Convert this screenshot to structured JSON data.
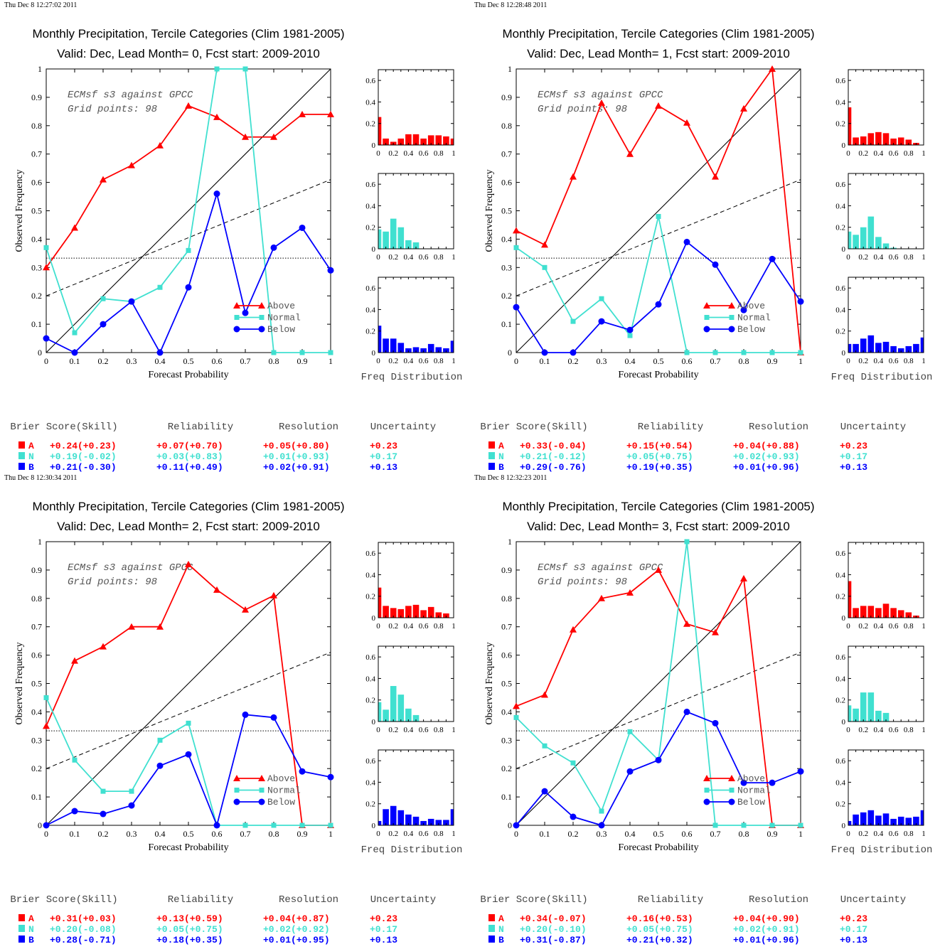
{
  "colors": {
    "above": "#ff0000",
    "normal": "#40e0d0",
    "below": "#0000ff",
    "diagonal": "#000000"
  },
  "chart_data": [
    {
      "type": "line",
      "timestamp": "Thu Dec  8 12:27:02 2011",
      "title": "Monthly Precipitation, Tercile Categories (Clim 1981-2005)",
      "subtitle": "Valid: Dec, Lead Month= 0, Fcst start: 2009-2010",
      "xlabel": "Forecast Probability",
      "ylabel": "Observed Frequency",
      "xlim": [
        0,
        1
      ],
      "ylim": [
        0,
        1
      ],
      "x": [
        0,
        0.1,
        0.2,
        0.3,
        0.4,
        0.5,
        0.6,
        0.7,
        0.8,
        0.9,
        1
      ],
      "annotation": [
        "ECMsf s3 against GPCC",
        "Grid points:   98"
      ],
      "series": [
        {
          "name": "Above",
          "values": [
            0.3,
            0.44,
            0.61,
            0.66,
            0.73,
            0.87,
            0.83,
            0.76,
            0.76,
            0.84,
            0.84
          ]
        },
        {
          "name": "Normal",
          "values": [
            0.37,
            0.07,
            0.19,
            0.18,
            0.23,
            0.36,
            1.0,
            1.0,
            0,
            0,
            0
          ]
        },
        {
          "name": "Below",
          "values": [
            0.05,
            0,
            0.1,
            0.18,
            0,
            0.23,
            0.56,
            0.14,
            0.37,
            0.44,
            0.29
          ]
        }
      ],
      "climatology": 0.333,
      "skill_line": [
        0.2,
        0.61
      ],
      "hist_xlabel": "Freq Distribution",
      "hist_ylim": [
        0,
        0.7
      ],
      "hist": {
        "above": [
          0.26,
          0.06,
          0.03,
          0.06,
          0.1,
          0.1,
          0.06,
          0.09,
          0.09,
          0.08,
          0.06
        ],
        "normal": [
          0.18,
          0.16,
          0.28,
          0.2,
          0.08,
          0.06,
          0,
          0,
          0,
          0,
          0
        ],
        "below": [
          0.25,
          0.13,
          0.13,
          0.09,
          0.04,
          0.05,
          0.04,
          0.08,
          0.05,
          0.04,
          0.11
        ]
      },
      "scores": {
        "headers": [
          "Brier Score(Skill)",
          "Reliability",
          "Resolution",
          "Uncertainty"
        ],
        "rows": [
          {
            "cat": "A",
            "brier": "+0.24(+0.23)",
            "rel": "+0.07(+0.70)",
            "res": "+0.05(+0.80)",
            "unc": "+0.23"
          },
          {
            "cat": "N",
            "brier": "+0.19(-0.02)",
            "rel": "+0.03(+0.83)",
            "res": "+0.01(+0.93)",
            "unc": "+0.17"
          },
          {
            "cat": "B",
            "brier": "+0.21(-0.30)",
            "rel": "+0.11(+0.49)",
            "res": "+0.02(+0.91)",
            "unc": "+0.13"
          }
        ]
      }
    },
    {
      "type": "line",
      "timestamp": "Thu Dec  8 12:28:48 2011",
      "title": "Monthly Precipitation, Tercile Categories (Clim 1981-2005)",
      "subtitle": "Valid: Dec, Lead Month= 1, Fcst start: 2009-2010",
      "xlabel": "Forecast Probability",
      "ylabel": "Observed Frequency",
      "xlim": [
        0,
        1
      ],
      "ylim": [
        0,
        1
      ],
      "x": [
        0,
        0.1,
        0.2,
        0.3,
        0.4,
        0.5,
        0.6,
        0.7,
        0.8,
        0.9,
        1
      ],
      "annotation": [
        "ECMsf s3 against GPCC",
        "Grid points:   98"
      ],
      "series": [
        {
          "name": "Above",
          "values": [
            0.43,
            0.38,
            0.62,
            0.88,
            0.7,
            0.87,
            0.81,
            0.62,
            0.86,
            1.0,
            0
          ]
        },
        {
          "name": "Normal",
          "values": [
            0.37,
            0.3,
            0.11,
            0.19,
            0.06,
            0.48,
            0,
            0,
            0,
            0,
            0
          ]
        },
        {
          "name": "Below",
          "values": [
            0.16,
            0,
            0,
            0.11,
            0.08,
            0.17,
            0.39,
            0.31,
            0.15,
            0.33,
            0.18
          ]
        }
      ],
      "climatology": 0.333,
      "skill_line": [
        0.2,
        0.61
      ],
      "hist_xlabel": "Freq Distribution",
      "hist_ylim": [
        0,
        0.7
      ],
      "hist": {
        "above": [
          0.35,
          0.07,
          0.08,
          0.11,
          0.12,
          0.11,
          0.06,
          0.07,
          0.05,
          0.02,
          0
        ],
        "normal": [
          0.16,
          0.13,
          0.2,
          0.3,
          0.11,
          0.05,
          0.01,
          0,
          0,
          0,
          0
        ],
        "below": [
          0.08,
          0.08,
          0.13,
          0.16,
          0.09,
          0.1,
          0.06,
          0.04,
          0.06,
          0.08,
          0.14
        ]
      },
      "scores": {
        "headers": [
          "Brier Score(Skill)",
          "Reliability",
          "Resolution",
          "Uncertainty"
        ],
        "rows": [
          {
            "cat": "A",
            "brier": "+0.33(-0.04)",
            "rel": "+0.15(+0.54)",
            "res": "+0.04(+0.88)",
            "unc": "+0.23"
          },
          {
            "cat": "N",
            "brier": "+0.21(-0.12)",
            "rel": "+0.05(+0.75)",
            "res": "+0.02(+0.93)",
            "unc": "+0.17"
          },
          {
            "cat": "B",
            "brier": "+0.29(-0.76)",
            "rel": "+0.19(+0.35)",
            "res": "+0.01(+0.96)",
            "unc": "+0.13"
          }
        ]
      }
    },
    {
      "type": "line",
      "timestamp": "Thu Dec  8 12:30:34 2011",
      "title": "Monthly Precipitation, Tercile Categories (Clim 1981-2005)",
      "subtitle": "Valid: Dec, Lead Month= 2, Fcst start: 2009-2010",
      "xlabel": "Forecast Probability",
      "ylabel": "Observed Frequency",
      "xlim": [
        0,
        1
      ],
      "ylim": [
        0,
        1
      ],
      "x": [
        0,
        0.1,
        0.2,
        0.3,
        0.4,
        0.5,
        0.6,
        0.7,
        0.8,
        0.9,
        1
      ],
      "annotation": [
        "ECMsf s3 against GPCC",
        "Grid points:   98"
      ],
      "series": [
        {
          "name": "Above",
          "values": [
            0.35,
            0.58,
            0.63,
            0.7,
            0.7,
            0.92,
            0.83,
            0.76,
            0.81,
            0,
            0
          ]
        },
        {
          "name": "Normal",
          "values": [
            0.45,
            0.23,
            0.12,
            0.12,
            0.3,
            0.36,
            0,
            0,
            0,
            0,
            0
          ]
        },
        {
          "name": "Below",
          "values": [
            0,
            0.05,
            0.04,
            0.07,
            0.21,
            0.25,
            0,
            0.39,
            0.38,
            0.19,
            0.17
          ]
        }
      ],
      "climatology": 0.333,
      "skill_line": [
        0.2,
        0.61
      ],
      "hist_xlabel": "Freq Distribution",
      "hist_ylim": [
        0,
        0.7
      ],
      "hist": {
        "above": [
          0.28,
          0.11,
          0.09,
          0.08,
          0.11,
          0.12,
          0.07,
          0.1,
          0.05,
          0.04,
          0
        ],
        "normal": [
          0.18,
          0.11,
          0.33,
          0.25,
          0.12,
          0.06,
          0,
          0,
          0,
          0,
          0
        ],
        "below": [
          0.04,
          0.15,
          0.18,
          0.14,
          0.1,
          0.08,
          0.04,
          0.06,
          0.05,
          0.05,
          0.15
        ]
      },
      "scores": {
        "headers": [
          "Brier Score(Skill)",
          "Reliability",
          "Resolution",
          "Uncertainty"
        ],
        "rows": [
          {
            "cat": "A",
            "brier": "+0.31(+0.03)",
            "rel": "+0.13(+0.59)",
            "res": "+0.04(+0.87)",
            "unc": "+0.23"
          },
          {
            "cat": "N",
            "brier": "+0.20(-0.08)",
            "rel": "+0.05(+0.75)",
            "res": "+0.02(+0.92)",
            "unc": "+0.17"
          },
          {
            "cat": "B",
            "brier": "+0.28(-0.71)",
            "rel": "+0.18(+0.35)",
            "res": "+0.01(+0.95)",
            "unc": "+0.13"
          }
        ]
      }
    },
    {
      "type": "line",
      "timestamp": "Thu Dec  8 12:32:23 2011",
      "title": "Monthly Precipitation, Tercile Categories (Clim 1981-2005)",
      "subtitle": "Valid: Dec, Lead Month= 3, Fcst start: 2009-2010",
      "xlabel": "Forecast Probability",
      "ylabel": "Observed Frequency",
      "xlim": [
        0,
        1
      ],
      "ylim": [
        0,
        1
      ],
      "x": [
        0,
        0.1,
        0.2,
        0.3,
        0.4,
        0.5,
        0.6,
        0.7,
        0.8,
        0.9,
        1
      ],
      "annotation": [
        "ECMsf s3 against GPCC",
        "Grid points:   98"
      ],
      "series": [
        {
          "name": "Above",
          "values": [
            0.42,
            0.46,
            0.69,
            0.8,
            0.82,
            0.9,
            0.71,
            0.68,
            0.87,
            0,
            0
          ]
        },
        {
          "name": "Normal",
          "values": [
            0.38,
            0.28,
            0.22,
            0.05,
            0.33,
            0.23,
            1.0,
            0,
            0,
            0,
            0
          ]
        },
        {
          "name": "Below",
          "values": [
            0,
            0.12,
            0.03,
            0,
            0.19,
            0.23,
            0.4,
            0.36,
            0.15,
            0.15,
            0.19
          ]
        }
      ],
      "climatology": 0.333,
      "skill_line": [
        0.2,
        0.61
      ],
      "hist_xlabel": "Freq Distribution",
      "hist_ylim": [
        0,
        0.7
      ],
      "hist": {
        "above": [
          0.34,
          0.09,
          0.11,
          0.11,
          0.09,
          0.13,
          0.09,
          0.07,
          0.05,
          0.02,
          0
        ],
        "normal": [
          0.15,
          0.12,
          0.27,
          0.27,
          0.1,
          0.08,
          0,
          0,
          0,
          0,
          0
        ],
        "below": [
          0.04,
          0.1,
          0.12,
          0.14,
          0.09,
          0.11,
          0.06,
          0.08,
          0.07,
          0.08,
          0.14
        ]
      },
      "scores": {
        "headers": [
          "Brier Score(Skill)",
          "Reliability",
          "Resolution",
          "Uncertainty"
        ],
        "rows": [
          {
            "cat": "A",
            "brier": "+0.34(-0.07)",
            "rel": "+0.16(+0.53)",
            "res": "+0.04(+0.90)",
            "unc": "+0.23"
          },
          {
            "cat": "N",
            "brier": "+0.20(-0.10)",
            "rel": "+0.05(+0.75)",
            "res": "+0.02(+0.91)",
            "unc": "+0.17"
          },
          {
            "cat": "B",
            "brier": "+0.31(-0.87)",
            "rel": "+0.21(+0.32)",
            "res": "+0.01(+0.96)",
            "unc": "+0.13"
          }
        ]
      }
    }
  ]
}
